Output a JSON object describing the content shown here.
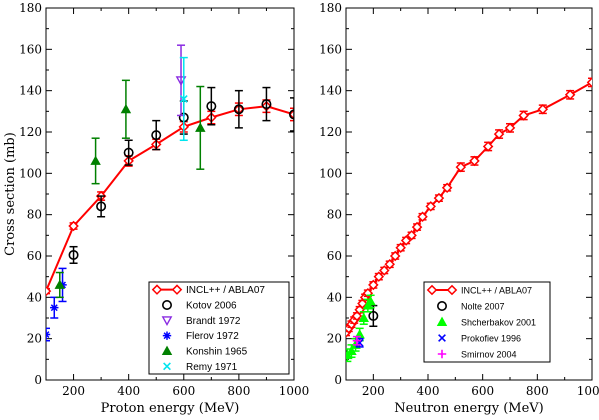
{
  "chart_data": [
    {
      "type": "scatter",
      "xlabel": "Proton energy (MeV)",
      "ylabel": "Cross section (mb)",
      "xlim": [
        100,
        1000
      ],
      "ylim": [
        0,
        180
      ],
      "xticks": [
        "200",
        "400",
        "600",
        "800",
        "1000"
      ],
      "yticks": [
        "0",
        "20",
        "40",
        "60",
        "80",
        "100",
        "120",
        "140",
        "160",
        "180"
      ],
      "legend_position": "bottom-right",
      "series": [
        {
          "name": "INCL++ / ABLA07",
          "color": "#ff0000",
          "marker": "diamond",
          "line": true,
          "points": [
            [
              100,
              43,
              1.2
            ],
            [
              200,
              74.5,
              1.5
            ],
            [
              300,
              89,
              2
            ],
            [
              400,
              106,
              2.5
            ],
            [
              500,
              114,
              2.5
            ],
            [
              600,
              122.5,
              2.5
            ],
            [
              700,
              127,
              3
            ],
            [
              800,
              131,
              3
            ],
            [
              900,
              132.5,
              3
            ],
            [
              1000,
              128.5,
              3
            ]
          ]
        },
        {
          "name": "Kotov 2006",
          "color": "#000000",
          "marker": "circle",
          "points": [
            [
              200,
              60.5,
              4
            ],
            [
              300,
              84,
              5
            ],
            [
              400,
              110,
              6
            ],
            [
              500,
              118.5,
              7
            ],
            [
              600,
              127,
              8
            ],
            [
              700,
              132.5,
              9
            ],
            [
              800,
              131,
              9
            ],
            [
              900,
              133.5,
              8
            ],
            [
              1000,
              128.5,
              8
            ]
          ]
        },
        {
          "name": "Brandt 1972",
          "color": "#8a2be2",
          "marker": "triangle-down",
          "points": [
            [
              590,
              145,
              17
            ]
          ]
        },
        {
          "name": "Flerov 1972",
          "color": "#0000ff",
          "marker": "asterisk",
          "points": [
            [
              100,
              22,
              3
            ],
            [
              130,
              35,
              5
            ],
            [
              160,
              46,
              8
            ]
          ]
        },
        {
          "name": "Konshin 1965",
          "color": "#008000",
          "marker": "triangle-up",
          "points": [
            [
              150,
              46,
              6
            ],
            [
              280,
              106,
              11
            ],
            [
              390,
              131,
              14
            ],
            [
              660,
              122,
              20
            ]
          ]
        },
        {
          "name": "Remy 1971",
          "color": "#00e5ee",
          "marker": "x",
          "points": [
            [
              600,
              136,
              20
            ]
          ]
        }
      ]
    },
    {
      "type": "scatter",
      "xlabel": "Neutron energy (MeV)",
      "ylabel": "",
      "xlim": [
        100,
        1000
      ],
      "ylim": [
        0,
        180
      ],
      "xticks": [
        "200",
        "400",
        "600",
        "800",
        "1000"
      ],
      "yticks": [
        "0",
        "20",
        "40",
        "60",
        "80",
        "100",
        "120",
        "140",
        "160",
        "180"
      ],
      "legend_position": "bottom-right",
      "series": [
        {
          "name": "INCL++ / ABLA07",
          "color": "#ff0000",
          "marker": "diamond",
          "line": true,
          "points": [
            [
              100,
              23,
              1.5
            ],
            [
              110,
              25,
              1.5
            ],
            [
              120,
              27,
              1.5
            ],
            [
              130,
              29,
              1.5
            ],
            [
              140,
              31,
              1.5
            ],
            [
              150,
              34,
              1.5
            ],
            [
              160,
              37,
              1.5
            ],
            [
              170,
              40,
              1.5
            ],
            [
              180,
              42,
              1.5
            ],
            [
              200,
              46,
              1.5
            ],
            [
              220,
              50,
              1.5
            ],
            [
              240,
              53,
              1.5
            ],
            [
              260,
              56,
              1.5
            ],
            [
              280,
              60,
              1.5
            ],
            [
              300,
              64,
              1.5
            ],
            [
              320,
              67.5,
              1.5
            ],
            [
              340,
              70,
              1.5
            ],
            [
              360,
              74,
              1.5
            ],
            [
              380,
              79,
              1.5
            ],
            [
              410,
              84,
              1.5
            ],
            [
              440,
              88,
              1.5
            ],
            [
              470,
              93,
              1.5
            ],
            [
              520,
              103,
              2
            ],
            [
              570,
              106,
              2
            ],
            [
              620,
              113,
              2
            ],
            [
              660,
              119,
              2
            ],
            [
              700,
              122,
              2
            ],
            [
              750,
              128,
              2
            ],
            [
              820,
              131,
              2
            ],
            [
              920,
              138,
              2
            ],
            [
              1000,
              144,
              2
            ]
          ]
        },
        {
          "name": "Nolte 2007",
          "color": "#000000",
          "marker": "circle",
          "points": [
            [
              200,
              31,
              5
            ]
          ]
        },
        {
          "name": "Shcherbakov 2001",
          "color": "#00ff00",
          "marker": "triangle-up",
          "points": [
            [
              105,
              12,
              3
            ],
            [
              120,
              14,
              3
            ],
            [
              135,
              17,
              3
            ],
            [
              150,
              22,
              3
            ],
            [
              165,
              30,
              3
            ],
            [
              180,
              36,
              3
            ],
            [
              190,
              38,
              3
            ]
          ]
        },
        {
          "name": "Prokofiev 1996",
          "color": "#0000ff",
          "marker": "x",
          "points": [
            [
              150,
              18,
              2
            ]
          ]
        },
        {
          "name": "Smirnov 2004",
          "color": "#ff00ff",
          "marker": "plus",
          "points": [
            [
              140,
              19,
              2
            ]
          ]
        }
      ]
    }
  ]
}
